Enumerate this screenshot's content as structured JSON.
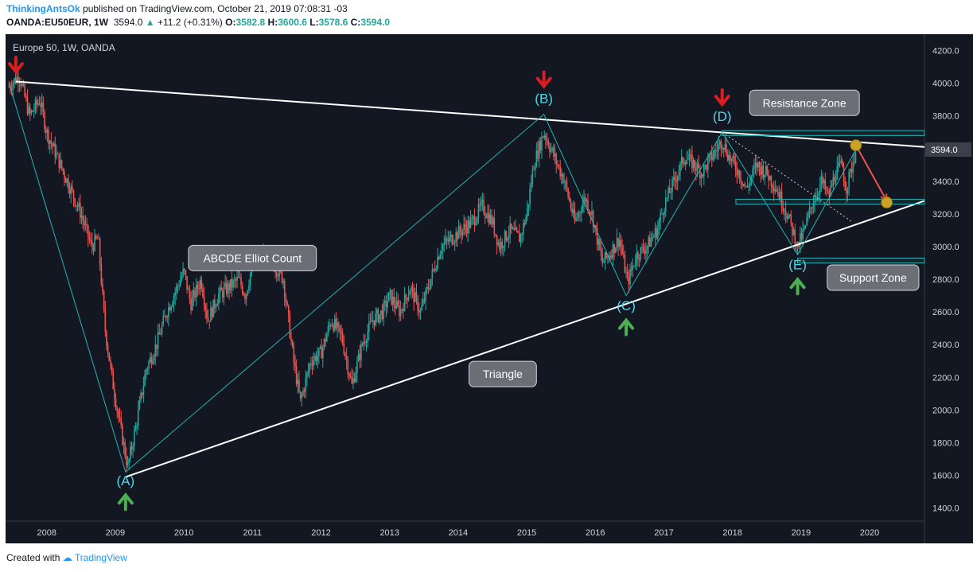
{
  "header": {
    "user": "ThinkingAntsOk",
    "published": "published on TradingView.com, October 21, 2019 07:08:31 -03",
    "symbol": "OANDA:EU50EUR, 1W",
    "last": "3594.0",
    "change": "+11.2 (+0.31%)",
    "o_label": "O:",
    "o": "3582.8",
    "h_label": "H:",
    "h": "3600.6",
    "l_label": "L:",
    "l": "3578.6",
    "c_label": "C:",
    "c": "3594.0"
  },
  "footer": {
    "created": "Created with",
    "brand": "TradingView"
  },
  "colors": {
    "background": "#131722",
    "up": "#26a69a",
    "down": "#ef5350",
    "wave": "#22b5b5",
    "triangle": "#ffffff",
    "arrow_down": "#d81e1e",
    "arrow_up": "#4caf50",
    "target": "#c9a227",
    "label_bg": "#6b6e75",
    "price_tag": "#3d404a"
  },
  "chart_data": {
    "type": "candlestick",
    "title": "Europe 50, 1W, OANDA",
    "x_ticks": [
      "2008",
      "2009",
      "2010",
      "2011",
      "2012",
      "2013",
      "2014",
      "2015",
      "2016",
      "2017",
      "2018",
      "2019",
      "2020"
    ],
    "y_ticks": [
      "1400.0",
      "1600.0",
      "1800.0",
      "2000.0",
      "2200.0",
      "2400.0",
      "2600.0",
      "2800.0",
      "3000.0",
      "3200.0",
      "3400.0",
      "3600.0",
      "3800.0",
      "4000.0",
      "4200.0"
    ],
    "ylim": [
      1320,
      4300
    ],
    "xlim": [
      2007.4,
      2020.8
    ],
    "last_price": "3594.0",
    "price_path": [
      {
        "x": 2007.45,
        "y": 3980
      },
      {
        "x": 2007.6,
        "y": 4050
      },
      {
        "x": 2007.75,
        "y": 3800
      },
      {
        "x": 2007.9,
        "y": 3900
      },
      {
        "x": 2008.0,
        "y": 3700
      },
      {
        "x": 2008.15,
        "y": 3550
      },
      {
        "x": 2008.35,
        "y": 3350
      },
      {
        "x": 2008.5,
        "y": 3200
      },
      {
        "x": 2008.65,
        "y": 3000
      },
      {
        "x": 2008.75,
        "y": 3050
      },
      {
        "x": 2008.85,
        "y": 2500
      },
      {
        "x": 2008.95,
        "y": 2200
      },
      {
        "x": 2009.05,
        "y": 1950
      },
      {
        "x": 2009.18,
        "y": 1650
      },
      {
        "x": 2009.3,
        "y": 1900
      },
      {
        "x": 2009.45,
        "y": 2250
      },
      {
        "x": 2009.6,
        "y": 2400
      },
      {
        "x": 2009.75,
        "y": 2600
      },
      {
        "x": 2009.9,
        "y": 2750
      },
      {
        "x": 2010.0,
        "y": 2850
      },
      {
        "x": 2010.1,
        "y": 2650
      },
      {
        "x": 2010.25,
        "y": 2800
      },
      {
        "x": 2010.35,
        "y": 2550
      },
      {
        "x": 2010.5,
        "y": 2700
      },
      {
        "x": 2010.65,
        "y": 2750
      },
      {
        "x": 2010.8,
        "y": 2800
      },
      {
        "x": 2010.9,
        "y": 2700
      },
      {
        "x": 2011.0,
        "y": 2900
      },
      {
        "x": 2011.2,
        "y": 2950
      },
      {
        "x": 2011.3,
        "y": 2900
      },
      {
        "x": 2011.45,
        "y": 2800
      },
      {
        "x": 2011.6,
        "y": 2300
      },
      {
        "x": 2011.7,
        "y": 2050
      },
      {
        "x": 2011.85,
        "y": 2300
      },
      {
        "x": 2012.0,
        "y": 2350
      },
      {
        "x": 2012.15,
        "y": 2550
      },
      {
        "x": 2012.3,
        "y": 2450
      },
      {
        "x": 2012.45,
        "y": 2150
      },
      {
        "x": 2012.6,
        "y": 2400
      },
      {
        "x": 2012.75,
        "y": 2550
      },
      {
        "x": 2012.9,
        "y": 2600
      },
      {
        "x": 2013.0,
        "y": 2700
      },
      {
        "x": 2013.15,
        "y": 2600
      },
      {
        "x": 2013.3,
        "y": 2750
      },
      {
        "x": 2013.45,
        "y": 2600
      },
      {
        "x": 2013.6,
        "y": 2800
      },
      {
        "x": 2013.75,
        "y": 3000
      },
      {
        "x": 2013.9,
        "y": 3050
      },
      {
        "x": 2014.05,
        "y": 3100
      },
      {
        "x": 2014.2,
        "y": 3150
      },
      {
        "x": 2014.35,
        "y": 3250
      },
      {
        "x": 2014.5,
        "y": 3150
      },
      {
        "x": 2014.6,
        "y": 3000
      },
      {
        "x": 2014.75,
        "y": 3100
      },
      {
        "x": 2014.9,
        "y": 3050
      },
      {
        "x": 2015.0,
        "y": 3200
      },
      {
        "x": 2015.1,
        "y": 3500
      },
      {
        "x": 2015.25,
        "y": 3700
      },
      {
        "x": 2015.35,
        "y": 3600
      },
      {
        "x": 2015.45,
        "y": 3500
      },
      {
        "x": 2015.55,
        "y": 3400
      },
      {
        "x": 2015.7,
        "y": 3150
      },
      {
        "x": 2015.85,
        "y": 3300
      },
      {
        "x": 2015.95,
        "y": 3200
      },
      {
        "x": 2016.1,
        "y": 2900
      },
      {
        "x": 2016.2,
        "y": 2950
      },
      {
        "x": 2016.35,
        "y": 3050
      },
      {
        "x": 2016.47,
        "y": 2780
      },
      {
        "x": 2016.6,
        "y": 2950
      },
      {
        "x": 2016.75,
        "y": 3000
      },
      {
        "x": 2016.9,
        "y": 3100
      },
      {
        "x": 2017.0,
        "y": 3250
      },
      {
        "x": 2017.15,
        "y": 3400
      },
      {
        "x": 2017.3,
        "y": 3550
      },
      {
        "x": 2017.45,
        "y": 3500
      },
      {
        "x": 2017.55,
        "y": 3450
      },
      {
        "x": 2017.7,
        "y": 3550
      },
      {
        "x": 2017.85,
        "y": 3650
      },
      {
        "x": 2017.95,
        "y": 3550
      },
      {
        "x": 2018.1,
        "y": 3450
      },
      {
        "x": 2018.2,
        "y": 3350
      },
      {
        "x": 2018.35,
        "y": 3500
      },
      {
        "x": 2018.5,
        "y": 3450
      },
      {
        "x": 2018.65,
        "y": 3350
      },
      {
        "x": 2018.8,
        "y": 3200
      },
      {
        "x": 2018.95,
        "y": 3000
      },
      {
        "x": 2019.05,
        "y": 3100
      },
      {
        "x": 2019.15,
        "y": 3250
      },
      {
        "x": 2019.3,
        "y": 3400
      },
      {
        "x": 2019.4,
        "y": 3300
      },
      {
        "x": 2019.5,
        "y": 3450
      },
      {
        "x": 2019.6,
        "y": 3500
      },
      {
        "x": 2019.65,
        "y": 3350
      },
      {
        "x": 2019.72,
        "y": 3450
      },
      {
        "x": 2019.8,
        "y": 3594
      }
    ],
    "wave_path": [
      {
        "x": 2007.45,
        "y": 4000
      },
      {
        "x": 2009.15,
        "y": 1620
      },
      {
        "x": 2015.25,
        "y": 3810
      },
      {
        "x": 2016.45,
        "y": 2700
      },
      {
        "x": 2017.85,
        "y": 3700
      },
      {
        "x": 2018.95,
        "y": 2950
      },
      {
        "x": 2019.8,
        "y": 3594
      }
    ],
    "wave_labels": [
      {
        "text": "(A)",
        "x": 2009.15,
        "y": 1540,
        "signal": "up"
      },
      {
        "text": "(B)",
        "x": 2015.25,
        "y": 3880,
        "signal": "down"
      },
      {
        "text": "(C)",
        "x": 2016.45,
        "y": 2610,
        "signal": "up"
      },
      {
        "text": "(D)",
        "x": 2017.85,
        "y": 3770,
        "signal": "down"
      },
      {
        "text": "(E)",
        "x": 2018.95,
        "y": 2860,
        "signal": "up"
      }
    ],
    "extra_down_arrows": [
      {
        "x": 2007.55,
        "y": 4100
      }
    ],
    "triangle_lines": [
      {
        "from": {
          "x": 2007.55,
          "y": 4010
        },
        "to": {
          "x": 2020.8,
          "y": 3610
        }
      },
      {
        "from": {
          "x": 2009.15,
          "y": 1590
        },
        "to": {
          "x": 2020.8,
          "y": 3280
        }
      }
    ],
    "dotted_line": {
      "from": {
        "x": 2017.85,
        "y": 3700
      },
      "to": {
        "x": 2019.75,
        "y": 3150
      }
    },
    "zones": [
      {
        "name": "resistance",
        "top": 3710,
        "bottom": 3680,
        "x_from": 2017.85,
        "x_to": 2020.8
      },
      {
        "name": "support-upper",
        "top": 3290,
        "bottom": 3260,
        "x_from": 2018.05,
        "x_to": 2020.8
      },
      {
        "name": "support-lower",
        "top": 2930,
        "bottom": 2900,
        "x_from": 2018.95,
        "x_to": 2020.8
      }
    ],
    "projection": {
      "from": {
        "x": 2019.8,
        "y": 3620
      },
      "to": {
        "x": 2020.25,
        "y": 3280
      }
    },
    "callouts": [
      {
        "text": "ABCDE Elliot Count",
        "x": 2011.0,
        "y": 2930
      },
      {
        "text": "Triangle",
        "x": 2014.65,
        "y": 2220
      },
      {
        "text": "Resistance Zone",
        "x": 2019.05,
        "y": 3880
      },
      {
        "text": "Support Zone",
        "x": 2020.05,
        "y": 2810
      }
    ]
  }
}
